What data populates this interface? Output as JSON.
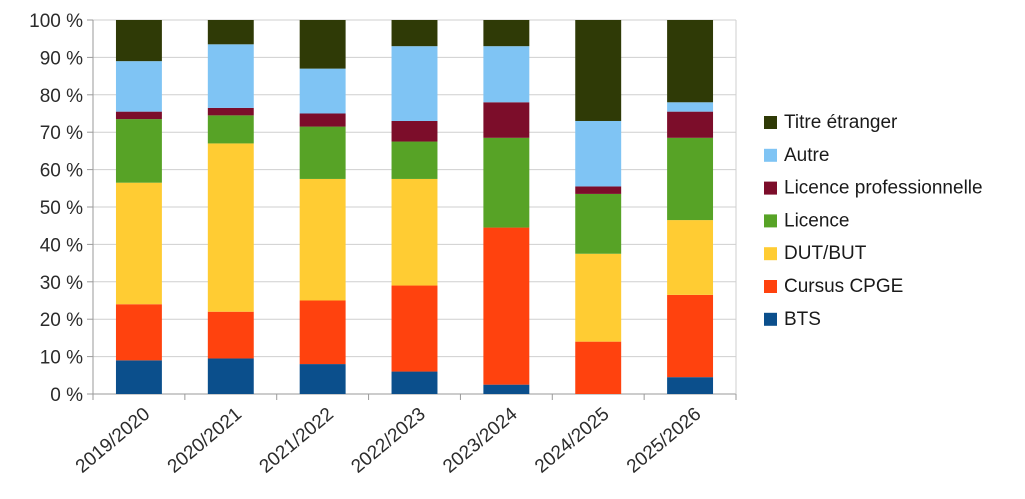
{
  "chart_data": {
    "type": "bar",
    "stacked": true,
    "percent_stacked": true,
    "title": "",
    "xlabel": "",
    "ylabel": "",
    "ylim": [
      0,
      100
    ],
    "y_ticks": [
      0,
      10,
      20,
      30,
      40,
      50,
      60,
      70,
      80,
      90,
      100
    ],
    "y_tick_suffix": " %",
    "grid": true,
    "legend_position": "right",
    "categories": [
      "2019/2020",
      "2020/2021",
      "2021/2022",
      "2022/2023",
      "2023/2024",
      "2024/2025",
      "2025/2026"
    ],
    "series": [
      {
        "name": "BTS",
        "color": "#0b4f8c",
        "values": [
          9,
          9.5,
          8,
          6,
          2.5,
          0,
          4.5
        ]
      },
      {
        "name": "Cursus CPGE",
        "color": "#ff420e",
        "values": [
          15,
          12.5,
          17,
          23,
          42,
          14,
          22
        ]
      },
      {
        "name": "DUT/BUT",
        "color": "#ffcc33",
        "values": [
          32.5,
          45,
          32.5,
          28.5,
          0,
          23.5,
          20
        ]
      },
      {
        "name": "Licence",
        "color": "#57a326",
        "values": [
          17,
          7.5,
          14,
          10,
          24,
          16,
          22
        ]
      },
      {
        "name": "Licence professionnelle",
        "color": "#7c0d2a",
        "values": [
          2,
          2,
          3.5,
          5.5,
          9.5,
          2,
          7
        ]
      },
      {
        "name": "Autre",
        "color": "#7fc4f4",
        "values": [
          13.5,
          17,
          12,
          20,
          15,
          17.5,
          2.5
        ]
      },
      {
        "name": "Titre étranger",
        "color": "#2f3a06",
        "values": [
          11,
          6.5,
          13,
          7,
          7,
          27,
          22
        ]
      }
    ],
    "legend_order": [
      "Titre étranger",
      "Autre",
      "Licence professionnelle",
      "Licence",
      "DUT/BUT",
      "Cursus CPGE",
      "BTS"
    ]
  }
}
